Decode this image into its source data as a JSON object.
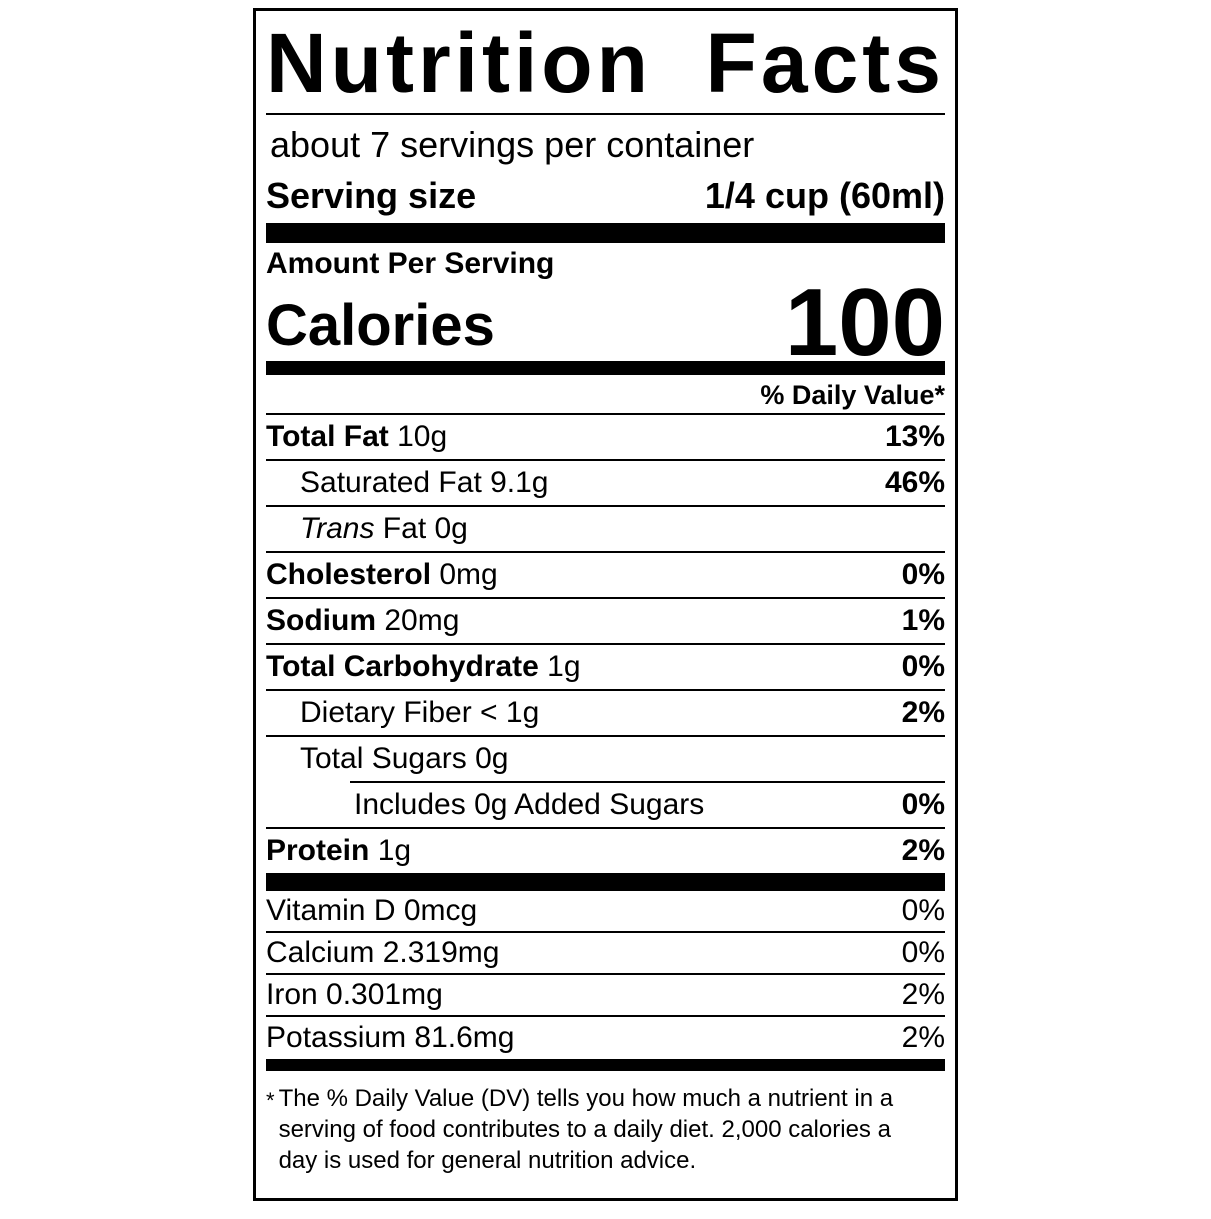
{
  "label": {
    "title": "Nutrition Facts",
    "servings_per_container": "about 7 servings per container",
    "serving_size": {
      "label": "Serving size",
      "value": "1/4 cup (60ml)"
    },
    "amount_per_serving": "Amount Per Serving",
    "calories": {
      "label": "Calories",
      "value": "100"
    },
    "daily_value_header": "% Daily Value*",
    "nutrients": [
      {
        "bold": "Total Fat",
        "regular": " 10g",
        "dv": "13%"
      },
      {
        "regular": "Saturated Fat 9.1g",
        "dv": "46%"
      },
      {
        "italic": "Trans",
        "regular": " Fat 0g",
        "dv": ""
      },
      {
        "bold": "Cholesterol",
        "regular": " 0mg",
        "dv": "0%"
      },
      {
        "bold": "Sodium",
        "regular": " 20mg",
        "dv": "1%"
      },
      {
        "bold": "Total Carbohydrate",
        "regular": " 1g",
        "dv": "0%"
      },
      {
        "regular": "Dietary Fiber < 1g",
        "dv": "2%"
      },
      {
        "regular": "Total Sugars 0g",
        "dv": ""
      },
      {
        "regular": "Includes 0g Added Sugars",
        "dv": "0%"
      },
      {
        "bold": "Protein",
        "regular": " 1g",
        "dv": "2%"
      }
    ],
    "vitamins": [
      {
        "name": "Vitamin D 0mcg",
        "dv": "0%"
      },
      {
        "name": "Calcium 2.319mg",
        "dv": "0%"
      },
      {
        "name": "Iron 0.301mg",
        "dv": "2%"
      },
      {
        "name": "Potassium 81.6mg",
        "dv": "2%"
      }
    ],
    "footnote_marker": "*",
    "footnote": "The % Daily Value (DV) tells you how much a nutrient in a serving of food contributes to a daily diet. 2,000 calories a day is used for general nutrition advice."
  },
  "colors": {
    "text": "#000000",
    "background": "#ffffff"
  }
}
